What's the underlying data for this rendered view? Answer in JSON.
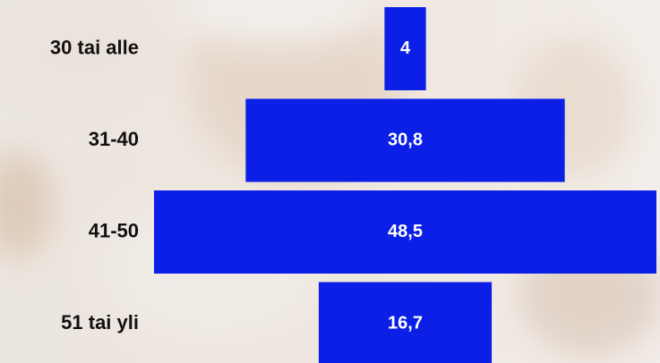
{
  "chart_data": {
    "type": "funnel",
    "categories": [
      "30 tai alle",
      "31-40",
      "41-50",
      "51 tai yli"
    ],
    "values": [
      4,
      30.8,
      48.5,
      16.7
    ],
    "value_labels": [
      "4",
      "30,8",
      "48,5",
      "16,7"
    ],
    "color": "#0b1fe6"
  }
}
